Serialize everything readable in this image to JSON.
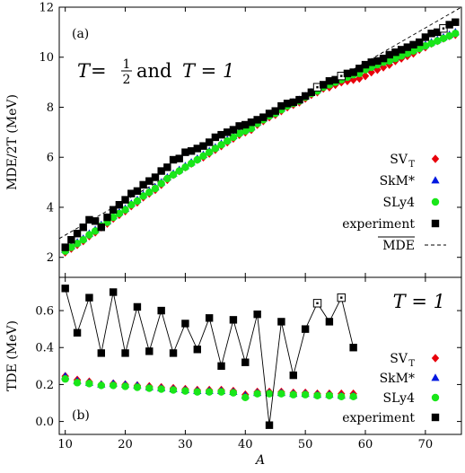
{
  "chart_data": [
    {
      "type": "scatter",
      "panel_label": "(a)",
      "annotation": {
        "T": "T",
        "eq": " = ",
        "half_num": "1",
        "half_den": "2",
        "and_text": " and ",
        "one_rhs": "T = 1"
      },
      "ylabel": "MDE/2T (MeV)",
      "xlim": [
        9,
        76
      ],
      "ylim": [
        1.2,
        12
      ],
      "yticks": [
        2,
        4,
        6,
        8,
        10,
        12
      ],
      "ytick_labels": [
        "2",
        "4",
        "6",
        "8",
        "10",
        "12"
      ],
      "legend_position": "bottom-right",
      "legend": [
        {
          "label": "SV",
          "sub": "T",
          "marker": "diamond",
          "color": "#e8000b"
        },
        {
          "label": "SkM*",
          "marker": "triangle",
          "color": "#0018e0"
        },
        {
          "label": "SLy4",
          "marker": "circle",
          "color": "#19e619"
        },
        {
          "label": "experiment",
          "marker": "square",
          "color": "#000000"
        },
        {
          "label": "MDE",
          "overline": true,
          "marker": "dashed-line",
          "color": "#000000"
        }
      ],
      "mde_line": {
        "x": [
          9,
          76
        ],
        "y": [
          2.75,
          12.0
        ]
      },
      "series": [
        {
          "name": "SVT",
          "marker": "diamond",
          "color": "#e8000b",
          "x": [
            10,
            11,
            12,
            13,
            14,
            15,
            16,
            17,
            18,
            19,
            20,
            21,
            22,
            23,
            24,
            25,
            26,
            27,
            28,
            29,
            30,
            31,
            32,
            33,
            34,
            35,
            36,
            37,
            38,
            39,
            40,
            41,
            42,
            43,
            44,
            45,
            46,
            47,
            48,
            49,
            50,
            51,
            52,
            53,
            54,
            55,
            56,
            57,
            58,
            59,
            60,
            61,
            62,
            63,
            64,
            65,
            66,
            67,
            68,
            69,
            70,
            71,
            72,
            73,
            74,
            75
          ],
          "y": [
            2.2,
            2.35,
            2.5,
            2.65,
            2.85,
            3.0,
            3.2,
            3.35,
            3.55,
            3.7,
            3.85,
            4.05,
            4.2,
            4.4,
            4.55,
            4.7,
            4.9,
            5.1,
            5.3,
            5.45,
            5.6,
            5.75,
            5.9,
            6.0,
            6.15,
            6.3,
            6.45,
            6.6,
            6.75,
            6.9,
            7.0,
            7.1,
            7.3,
            7.45,
            7.6,
            7.7,
            7.85,
            8.0,
            8.1,
            8.2,
            8.35,
            8.5,
            8.6,
            8.75,
            8.8,
            8.9,
            9.0,
            9.05,
            9.1,
            9.15,
            9.25,
            9.4,
            9.5,
            9.6,
            9.7,
            9.85,
            9.95,
            10.05,
            10.15,
            10.3,
            10.4,
            10.55,
            10.65,
            10.75,
            10.85,
            10.9
          ]
        },
        {
          "name": "SkM*",
          "marker": "triangle",
          "color": "#0018e0",
          "x": [
            10,
            11,
            12,
            13,
            14,
            15,
            16,
            17,
            18,
            19,
            20,
            21,
            22,
            23,
            24,
            25,
            26,
            27,
            28,
            29,
            30,
            31,
            32,
            33,
            34,
            35,
            36,
            37,
            38,
            39,
            40,
            41,
            42,
            43,
            44,
            45,
            46,
            47,
            48,
            49,
            50,
            51,
            52,
            53,
            54,
            55,
            56,
            57,
            58,
            59,
            60,
            61,
            62,
            63,
            64,
            65,
            66,
            67,
            68,
            69,
            70,
            71,
            72,
            73,
            74,
            75
          ],
          "y": [
            2.3,
            2.45,
            2.6,
            2.75,
            2.95,
            3.1,
            3.3,
            3.45,
            3.65,
            3.8,
            3.95,
            4.15,
            4.3,
            4.5,
            4.65,
            4.8,
            5.0,
            5.2,
            5.35,
            5.5,
            5.65,
            5.8,
            5.95,
            6.1,
            6.25,
            6.4,
            6.55,
            6.7,
            6.85,
            7.0,
            7.1,
            7.2,
            7.4,
            7.55,
            7.7,
            7.8,
            7.95,
            8.1,
            8.2,
            8.3,
            8.45,
            8.6,
            8.7,
            8.85,
            8.95,
            9.05,
            9.15,
            9.25,
            9.35,
            9.45,
            9.55,
            9.65,
            9.75,
            9.85,
            9.9,
            10.0,
            10.1,
            10.2,
            10.3,
            10.4,
            10.5,
            10.6,
            10.7,
            10.8,
            10.9,
            11.0
          ]
        },
        {
          "name": "SLy4",
          "marker": "circle",
          "color": "#19e619",
          "x": [
            10,
            11,
            12,
            13,
            14,
            15,
            16,
            17,
            18,
            19,
            20,
            21,
            22,
            23,
            24,
            25,
            26,
            27,
            28,
            29,
            30,
            31,
            32,
            33,
            34,
            35,
            36,
            37,
            38,
            39,
            40,
            41,
            42,
            43,
            44,
            45,
            46,
            47,
            48,
            49,
            50,
            51,
            52,
            53,
            54,
            55,
            56,
            57,
            58,
            59,
            60,
            61,
            62,
            63,
            64,
            65,
            66,
            67,
            68,
            69,
            70,
            71,
            72,
            73,
            74,
            75
          ],
          "y": [
            2.25,
            2.4,
            2.55,
            2.7,
            2.9,
            3.05,
            3.25,
            3.4,
            3.6,
            3.75,
            3.9,
            4.1,
            4.25,
            4.45,
            4.6,
            4.75,
            4.95,
            5.15,
            5.3,
            5.45,
            5.6,
            5.75,
            5.9,
            6.05,
            6.2,
            6.35,
            6.5,
            6.65,
            6.8,
            6.95,
            7.05,
            7.15,
            7.35,
            7.5,
            7.65,
            7.75,
            7.9,
            8.05,
            8.15,
            8.25,
            8.4,
            8.55,
            8.65,
            8.8,
            8.9,
            9.0,
            9.1,
            9.2,
            9.3,
            9.35,
            9.5,
            9.6,
            9.7,
            9.8,
            9.85,
            9.95,
            10.05,
            10.15,
            10.25,
            10.35,
            10.45,
            10.55,
            10.65,
            10.75,
            10.85,
            10.95
          ]
        },
        {
          "name": "experiment",
          "marker": "square",
          "color": "#000000",
          "x": [
            10,
            11,
            12,
            13,
            14,
            15,
            16,
            17,
            18,
            19,
            20,
            21,
            22,
            23,
            24,
            25,
            26,
            27,
            28,
            29,
            30,
            31,
            32,
            33,
            34,
            35,
            36,
            37,
            38,
            39,
            40,
            41,
            42,
            43,
            44,
            45,
            46,
            47,
            48,
            49,
            50,
            51,
            52,
            53,
            54,
            55,
            56,
            57,
            58,
            59,
            60,
            61,
            62,
            63,
            64,
            65,
            66,
            67,
            68,
            69,
            70,
            71,
            72,
            73,
            74,
            75
          ],
          "y": [
            2.4,
            2.7,
            2.95,
            3.2,
            3.5,
            3.45,
            3.2,
            3.6,
            3.9,
            4.1,
            4.3,
            4.55,
            4.65,
            4.9,
            5.05,
            5.2,
            5.45,
            5.6,
            5.9,
            5.95,
            6.2,
            6.25,
            6.35,
            6.45,
            6.6,
            6.8,
            6.9,
            7.0,
            7.1,
            7.25,
            7.3,
            7.4,
            7.5,
            7.6,
            7.75,
            7.85,
            8.05,
            8.15,
            8.2,
            8.3,
            8.45,
            8.6,
            8.8,
            8.9,
            9.05,
            9.1,
            9.25,
            9.35,
            9.4,
            9.55,
            9.7,
            9.8,
            9.85,
            9.95,
            10.1,
            10.2,
            10.3,
            10.4,
            10.5,
            10.6,
            10.8,
            10.95,
            11.0,
            11.15,
            11.3,
            11.4
          ],
          "open_points": [
            52,
            56,
            73
          ]
        }
      ]
    },
    {
      "type": "line",
      "panel_label": "(b)",
      "annotation": "T = 1",
      "ylabel": "TDE (MeV)",
      "xlabel": "A",
      "xlim": [
        9,
        76
      ],
      "ylim": [
        -0.07,
        0.78
      ],
      "xticks": [
        10,
        20,
        30,
        40,
        50,
        60,
        70
      ],
      "xtick_labels": [
        "10",
        "20",
        "30",
        "40",
        "50",
        "60",
        "70"
      ],
      "yticks": [
        0.0,
        0.2,
        0.4,
        0.6
      ],
      "ytick_labels": [
        "0.0",
        "0.2",
        "0.4",
        "0.6"
      ],
      "legend_position": "right",
      "legend": [
        {
          "label": "SV",
          "sub": "T",
          "marker": "diamond",
          "color": "#e8000b"
        },
        {
          "label": "SkM*",
          "marker": "triangle",
          "color": "#0018e0"
        },
        {
          "label": "SLy4",
          "marker": "circle",
          "color": "#19e619"
        },
        {
          "label": "experiment",
          "marker": "square",
          "color": "#000000"
        }
      ],
      "series": [
        {
          "name": "SVT",
          "marker": "diamond",
          "color": "#e8000b",
          "x": [
            10,
            12,
            14,
            16,
            18,
            20,
            22,
            24,
            26,
            28,
            30,
            32,
            34,
            36,
            38,
            40,
            42,
            44,
            46,
            48,
            50,
            52,
            54,
            56,
            58
          ],
          "y": [
            0.245,
            0.225,
            0.215,
            0.2,
            0.205,
            0.2,
            0.195,
            0.19,
            0.185,
            0.18,
            0.175,
            0.17,
            0.17,
            0.17,
            0.165,
            0.145,
            0.16,
            0.16,
            0.16,
            0.155,
            0.155,
            0.15,
            0.15,
            0.15,
            0.15
          ]
        },
        {
          "name": "SkM*",
          "marker": "triangle",
          "color": "#0018e0",
          "x": [
            10,
            12,
            14,
            16,
            18,
            20,
            22,
            24,
            26,
            28,
            30,
            32,
            34,
            36,
            38,
            40,
            42,
            44,
            46,
            48,
            50,
            52,
            54,
            56,
            58
          ],
          "y": [
            0.245,
            0.22,
            0.21,
            0.2,
            0.205,
            0.2,
            0.195,
            0.185,
            0.18,
            0.175,
            0.17,
            0.165,
            0.165,
            0.165,
            0.16,
            0.14,
            0.155,
            0.155,
            0.155,
            0.15,
            0.15,
            0.145,
            0.145,
            0.14,
            0.14
          ]
        },
        {
          "name": "SLy4",
          "marker": "circle",
          "color": "#19e619",
          "x": [
            10,
            12,
            14,
            16,
            18,
            20,
            22,
            24,
            26,
            28,
            30,
            32,
            34,
            36,
            38,
            40,
            42,
            44,
            46,
            48,
            50,
            52,
            54,
            56,
            58
          ],
          "y": [
            0.23,
            0.21,
            0.205,
            0.195,
            0.195,
            0.19,
            0.185,
            0.18,
            0.175,
            0.17,
            0.165,
            0.16,
            0.16,
            0.16,
            0.155,
            0.13,
            0.15,
            0.15,
            0.15,
            0.145,
            0.145,
            0.14,
            0.14,
            0.135,
            0.135
          ]
        },
        {
          "name": "experiment",
          "marker": "square",
          "color": "#000000",
          "connected": true,
          "x": [
            10,
            12,
            14,
            16,
            18,
            20,
            22,
            24,
            26,
            28,
            30,
            32,
            34,
            36,
            38,
            40,
            42,
            44,
            46,
            48,
            50,
            52,
            54,
            56,
            58
          ],
          "y": [
            0.72,
            0.48,
            0.67,
            0.37,
            0.7,
            0.37,
            0.62,
            0.38,
            0.6,
            0.37,
            0.53,
            0.39,
            0.56,
            0.3,
            0.55,
            0.32,
            0.58,
            -0.02,
            0.54,
            0.25,
            0.5,
            0.64,
            0.54,
            0.67,
            0.4
          ],
          "open_points": [
            52,
            56
          ]
        }
      ]
    }
  ]
}
